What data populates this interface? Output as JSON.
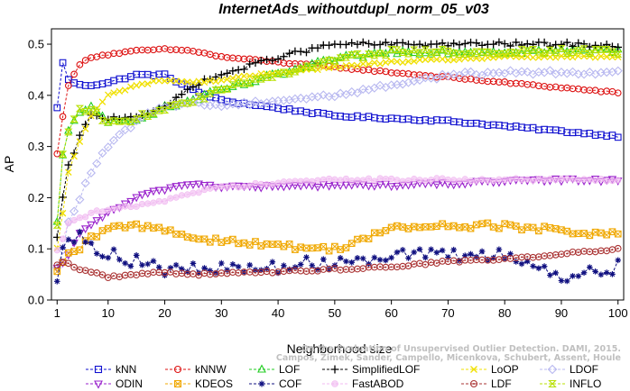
{
  "chart_data": {
    "type": "line",
    "title": "InternetAds_withoutdupl_norm_05_v03",
    "xlabel": "Neighborhood size",
    "ylabel": "AP",
    "xlim": [
      0,
      101
    ],
    "ylim": [
      0,
      0.53
    ],
    "xticks": [
      1,
      10,
      20,
      30,
      40,
      50,
      60,
      70,
      80,
      90,
      100
    ],
    "yticks": [
      0.0,
      0.1,
      0.2,
      0.3,
      0.4,
      0.5
    ],
    "ytick_labels": [
      "0.0",
      "0.1",
      "0.2",
      "0.3",
      "0.4",
      "0.5"
    ],
    "grid": false,
    "legend_position": "bottom",
    "credit": [
      "Campos, Zimek, Sander, Campello, Micenkova, Schubert, Assent, Houle",
      "On the Evaluation of Unsupervised Outlier Detection. DAMI, 2015."
    ],
    "x_anchor_points": [
      1,
      2,
      3,
      5,
      7,
      10,
      15,
      20,
      25,
      30,
      40,
      50,
      60,
      70,
      80,
      90,
      100
    ],
    "series": [
      {
        "name": "kNN",
        "color": "#1010d0",
        "marker": "square",
        "anchors": [
          0.375,
          0.465,
          0.43,
          0.42,
          0.42,
          0.425,
          0.44,
          0.44,
          0.41,
          0.39,
          0.375,
          0.36,
          0.355,
          0.35,
          0.34,
          0.33,
          0.32
        ]
      },
      {
        "name": "kNNW",
        "color": "#dd1111",
        "marker": "circle",
        "anchors": [
          0.285,
          0.36,
          0.42,
          0.46,
          0.475,
          0.48,
          0.487,
          0.49,
          0.487,
          0.475,
          0.465,
          0.455,
          0.445,
          0.435,
          0.425,
          0.415,
          0.405
        ]
      },
      {
        "name": "LOF",
        "color": "#22cc22",
        "marker": "triangle-up",
        "anchors": [
          0.15,
          0.28,
          0.33,
          0.37,
          0.375,
          0.345,
          0.355,
          0.375,
          0.39,
          0.41,
          0.44,
          0.47,
          0.485,
          0.485,
          0.485,
          0.487,
          0.487
        ]
      },
      {
        "name": "SimplifiedLOF",
        "color": "#000000",
        "marker": "plus",
        "anchors": [
          0.12,
          0.2,
          0.26,
          0.32,
          0.36,
          0.355,
          0.36,
          0.375,
          0.42,
          0.44,
          0.475,
          0.5,
          0.5,
          0.5,
          0.5,
          0.5,
          0.497
        ]
      },
      {
        "name": "LoOP",
        "color": "#f0e000",
        "marker": "x",
        "anchors": [
          0.1,
          0.17,
          0.25,
          0.31,
          0.36,
          0.4,
          0.42,
          0.43,
          0.425,
          0.43,
          0.445,
          0.455,
          0.465,
          0.47,
          0.475,
          0.475,
          0.475
        ]
      },
      {
        "name": "LDOF",
        "color": "#b8b8f0",
        "marker": "diamond",
        "anchors": [
          0.06,
          0.1,
          0.15,
          0.2,
          0.25,
          0.3,
          0.35,
          0.38,
          0.385,
          0.38,
          0.39,
          0.4,
          0.42,
          0.44,
          0.445,
          0.445,
          0.445
        ]
      },
      {
        "name": "ODIN",
        "color": "#9922cc",
        "marker": "triangle-down",
        "anchors": [
          0.06,
          0.07,
          0.09,
          0.13,
          0.15,
          0.17,
          0.2,
          0.218,
          0.228,
          0.222,
          0.222,
          0.225,
          0.225,
          0.228,
          0.232,
          0.235,
          0.235
        ]
      },
      {
        "name": "KDEOS",
        "color": "#f0a800",
        "marker": "square-x",
        "anchors": [
          0.05,
          0.07,
          0.09,
          0.1,
          0.12,
          0.14,
          0.145,
          0.14,
          0.12,
          0.118,
          0.105,
          0.1,
          0.14,
          0.145,
          0.145,
          0.135,
          0.128
        ]
      },
      {
        "name": "COF",
        "color": "#101080",
        "marker": "asterisk",
        "anchors": [
          0.05,
          0.1,
          0.13,
          0.12,
          0.105,
          0.095,
          0.075,
          0.06,
          0.058,
          0.06,
          0.065,
          0.075,
          0.09,
          0.085,
          0.09,
          0.045,
          0.065
        ]
      },
      {
        "name": "FastABOD",
        "color": "#f0b8f0",
        "marker": "circle-filled",
        "anchors": [
          0.1,
          0.12,
          0.15,
          0.16,
          0.17,
          0.175,
          0.185,
          0.195,
          0.21,
          0.22,
          0.23,
          0.235,
          0.235,
          0.235,
          0.235,
          0.235,
          0.235
        ]
      },
      {
        "name": "LDF",
        "color": "#aa3333",
        "marker": "circle-dot",
        "anchors": [
          0.07,
          0.075,
          0.07,
          0.06,
          0.055,
          0.045,
          0.05,
          0.055,
          0.05,
          0.052,
          0.055,
          0.06,
          0.065,
          0.075,
          0.08,
          0.09,
          0.1
        ]
      },
      {
        "name": "INFLO",
        "color": "#b8e000",
        "marker": "hourglass",
        "anchors": [
          0.15,
          0.28,
          0.33,
          0.37,
          0.375,
          0.345,
          0.355,
          0.375,
          0.39,
          0.41,
          0.44,
          0.47,
          0.485,
          0.485,
          0.485,
          0.487,
          0.485
        ]
      }
    ]
  }
}
